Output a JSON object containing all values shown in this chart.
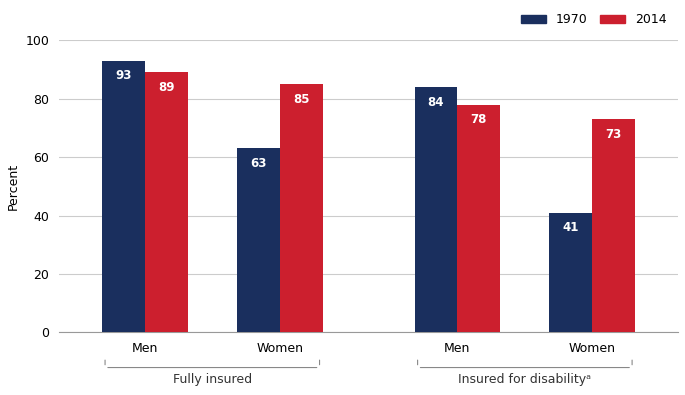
{
  "groups": [
    {
      "label": "Men",
      "category": "Fully insured",
      "v1970": 93,
      "v2014": 89
    },
    {
      "label": "Women",
      "category": "Fully insured",
      "v1970": 63,
      "v2014": 85
    },
    {
      "label": "Men",
      "category": "Insured for disability",
      "v1970": 84,
      "v2014": 78
    },
    {
      "label": "Women",
      "category": "Insured for disability",
      "v1970": 41,
      "v2014": 73
    }
  ],
  "color_1970": "#1a2f5e",
  "color_2014": "#cc1f2e",
  "ylabel": "Percent",
  "ylim": [
    0,
    100
  ],
  "yticks": [
    0,
    20,
    40,
    60,
    80,
    100
  ],
  "bar_width": 0.35,
  "label_fontsize": 9,
  "tick_fontsize": 9,
  "legend_fontsize": 9,
  "value_fontsize": 8.5,
  "bracket_label_fully": "Fully insured",
  "bracket_label_disability": "Insured for disabilityᵃ",
  "background_color": "#ffffff",
  "grid_color": "#cccccc",
  "group_centers": [
    1.0,
    2.1,
    3.55,
    4.65
  ],
  "xlim": [
    0.3,
    5.35
  ]
}
